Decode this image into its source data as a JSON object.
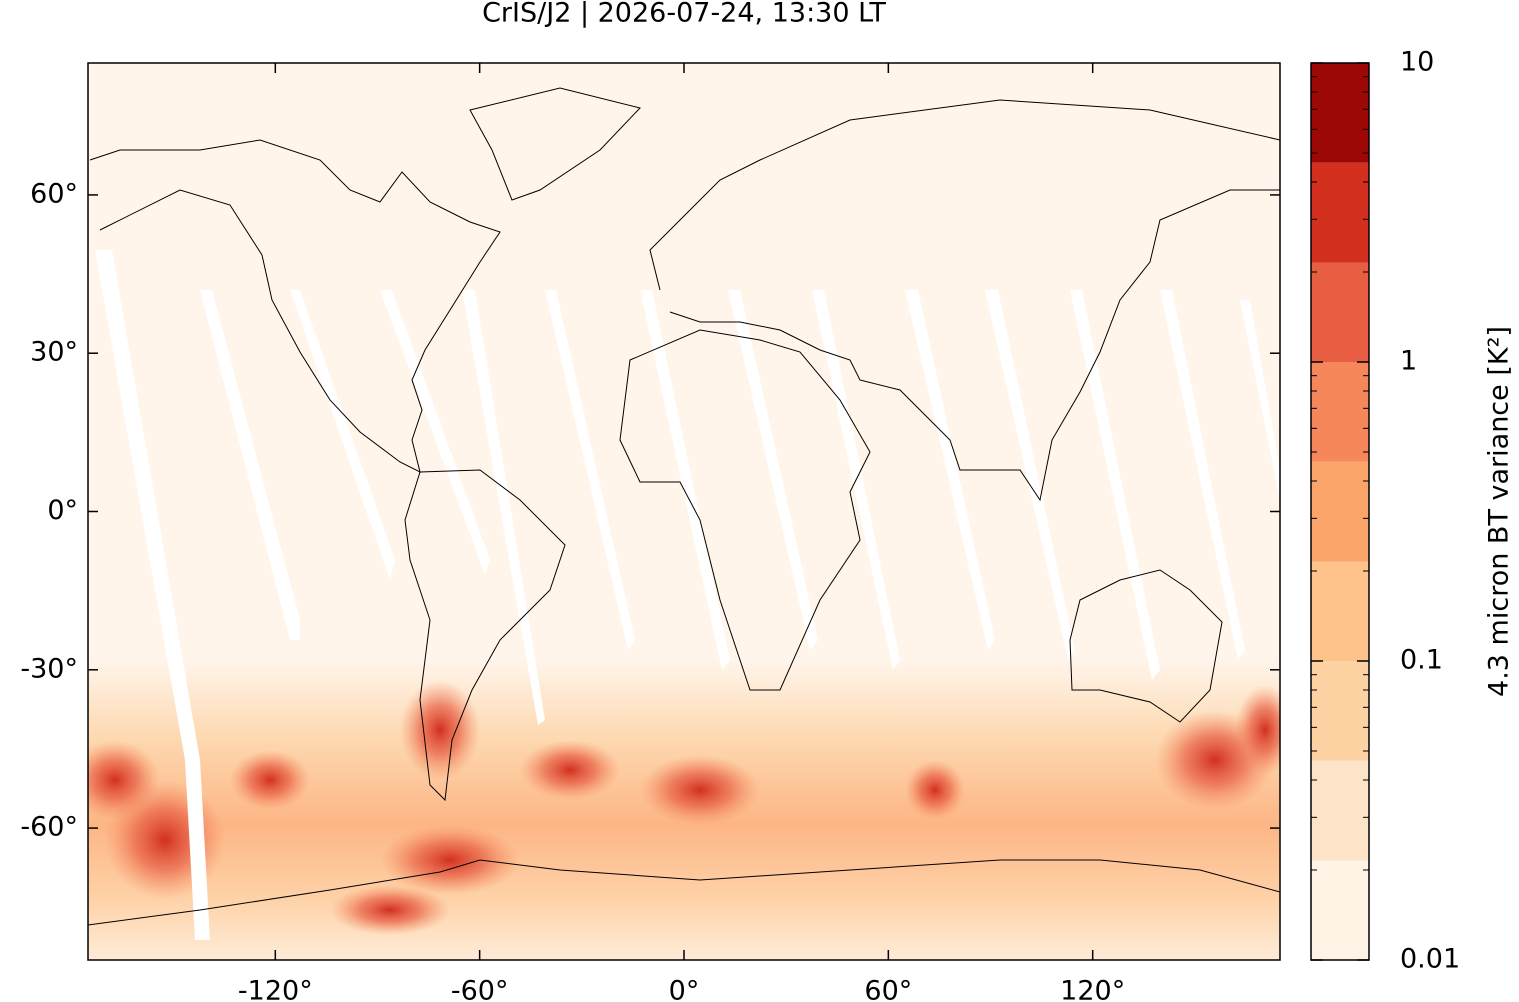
{
  "chart_data": {
    "type": "map",
    "title": "CrIS/J2 | 2026-07-24, 13:30 LT",
    "xlim": [
      -175,
      175
    ],
    "ylim": [
      -85,
      85
    ],
    "xticks": [
      {
        "value": -120,
        "label": "-120°"
      },
      {
        "value": -60,
        "label": "-60°"
      },
      {
        "value": 0,
        "label": "0°"
      },
      {
        "value": 60,
        "label": "60°"
      },
      {
        "value": 120,
        "label": "120°"
      }
    ],
    "yticks": [
      {
        "value": -60,
        "label": "-60°"
      },
      {
        "value": -30,
        "label": "-30°"
      },
      {
        "value": 0,
        "label": "0°"
      },
      {
        "value": 30,
        "label": "30°"
      },
      {
        "value": 60,
        "label": "60°"
      }
    ],
    "colorbar": {
      "label": "4.3 micron BT variance [K²]",
      "log": true,
      "lim": [
        0.01,
        10
      ],
      "ticks": [
        0.01,
        0.1,
        1,
        10
      ],
      "levels": [
        0.01,
        0.0215,
        0.0464,
        0.1,
        0.215,
        0.464,
        1,
        2.15,
        4.64,
        10
      ],
      "colors": [
        "#fff3e6",
        "#fde4c9",
        "#fdd3a4",
        "#fdc38b",
        "#fca56b",
        "#f5875a",
        "#e85e43",
        "#d22f1f",
        "#9b0806"
      ]
    }
  }
}
